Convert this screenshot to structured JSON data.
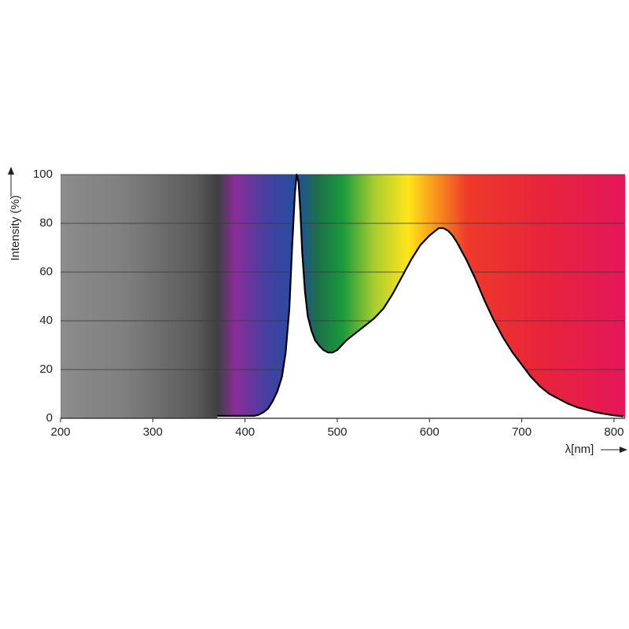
{
  "chart_data": {
    "type": "line",
    "y_label": "Intensity (%)",
    "x_label": "λ[nm]",
    "x": [
      370,
      380,
      390,
      400,
      410,
      415,
      420,
      425,
      430,
      435,
      440,
      444,
      448,
      451,
      454,
      456,
      458,
      460,
      462,
      465,
      468,
      472,
      476,
      480,
      485,
      490,
      495,
      500,
      505,
      510,
      520,
      530,
      540,
      550,
      560,
      570,
      580,
      590,
      600,
      610,
      615,
      620,
      625,
      630,
      640,
      650,
      660,
      670,
      680,
      690,
      700,
      710,
      720,
      730,
      740,
      750,
      760,
      770,
      780,
      790,
      800,
      810
    ],
    "series": [
      {
        "name": "Intensity",
        "color": "#000000",
        "values": [
          1,
          1,
          1,
          1,
          1,
          1.5,
          2.5,
          4,
          7,
          11,
          17,
          27,
          45,
          70,
          92,
          100,
          97,
          85,
          68,
          52,
          42,
          36,
          32,
          30,
          28,
          27,
          27,
          28,
          30,
          32,
          35,
          38,
          41,
          45,
          51,
          58,
          65,
          71,
          75,
          78,
          78,
          77,
          75,
          72,
          65,
          57,
          48,
          40,
          33,
          27,
          22,
          17,
          13,
          10,
          8,
          6,
          4.5,
          3.5,
          2.5,
          1.8,
          1.2,
          0.8
        ]
      }
    ],
    "xlim": [
      200,
      812
    ],
    "ylim": [
      0,
      100
    ],
    "xticks": [
      200,
      300,
      400,
      500,
      600,
      700,
      800
    ],
    "yticks": [
      0,
      20,
      40,
      60,
      80,
      100
    ],
    "grid": true
  }
}
